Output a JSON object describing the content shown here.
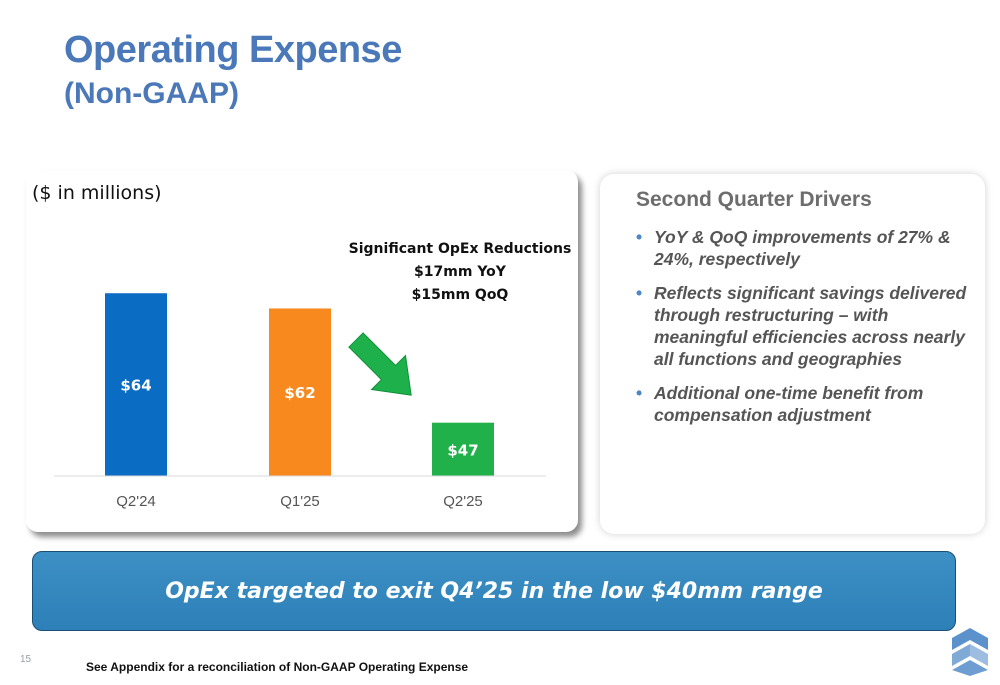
{
  "slide": {
    "title": "Operating Expense",
    "subtitle": "(Non-GAAP)",
    "page_number": "15",
    "footnote": "See Appendix for a reconciliation of Non-GAAP Operating Expense",
    "banner_text": "OpEx targeted to exit Q4’25 in the low $40mm range"
  },
  "chart_data": {
    "type": "bar",
    "units_label": "($ in millions)",
    "categories": [
      "Q2'24",
      "Q1'25",
      "Q2'25"
    ],
    "values": [
      64,
      62,
      47
    ],
    "data_labels": [
      "$64",
      "$62",
      "$47"
    ],
    "bar_colors": [
      "#0a6cc2",
      "#f7891e",
      "#20b14a"
    ],
    "ylim": [
      40,
      66
    ],
    "grid": false,
    "annotation": {
      "lines": [
        "Significant OpEx Reductions",
        "$17mm YoY",
        "$15mm QoQ"
      ]
    },
    "arrow_color": "#1db04b"
  },
  "drivers": {
    "title": "Second Quarter Drivers",
    "bullets": [
      "YoY & QoQ improvements of 27% & 24%, respectively",
      "Reflects significant savings delivered through restructuring – with meaningful efficiencies across nearly all functions and geographies",
      "Additional one-time benefit from compensation adjustment"
    ]
  },
  "colors": {
    "title": "#4a78b8",
    "banner": "#3489c0",
    "bullet": "#4a86c5"
  },
  "logo": {
    "icon": "3d-systems-logo-icon"
  }
}
